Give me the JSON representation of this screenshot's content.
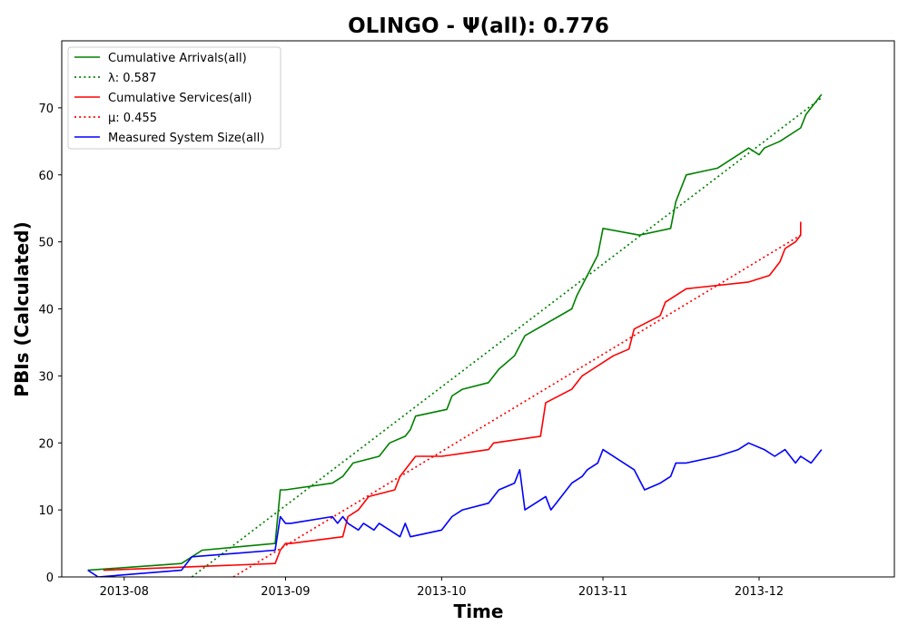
{
  "chart_data": {
    "type": "line",
    "title": "OLINGO -  Ψ(all): 0.776",
    "xlabel": "Time",
    "ylabel": "PBIs (Calculated)",
    "xlim": [
      "2013-07-20",
      "2013-12-27"
    ],
    "ylim": [
      0,
      80
    ],
    "x_ticks": [
      "2013-08",
      "2013-09",
      "2013-10",
      "2013-11",
      "2013-12"
    ],
    "y_ticks": [
      0,
      10,
      20,
      30,
      40,
      50,
      60,
      70
    ],
    "grid": false,
    "legend_position": "top-left",
    "series": [
      {
        "name": "Cumulative Arrivals(all)",
        "color": "#008000",
        "style": "solid",
        "x": [
          "2013-07-25",
          "2013-08-12",
          "2013-08-14",
          "2013-08-16",
          "2013-08-30",
          "2013-08-31",
          "2013-09-01",
          "2013-09-10",
          "2013-09-12",
          "2013-09-14",
          "2013-09-19",
          "2013-09-21",
          "2013-09-24",
          "2013-09-25",
          "2013-09-26",
          "2013-10-02",
          "2013-10-03",
          "2013-10-05",
          "2013-10-10",
          "2013-10-12",
          "2013-10-15",
          "2013-10-17",
          "2013-10-26",
          "2013-10-27",
          "2013-10-31",
          "2013-11-01",
          "2013-11-08",
          "2013-11-14",
          "2013-11-15",
          "2013-11-17",
          "2013-11-23",
          "2013-11-27",
          "2013-11-29",
          "2013-12-01",
          "2013-12-02",
          "2013-12-05",
          "2013-12-09",
          "2013-12-10",
          "2013-12-13"
        ],
        "y": [
          1,
          2,
          3,
          4,
          5,
          13,
          13,
          14,
          15,
          17,
          18,
          20,
          21,
          22,
          24,
          25,
          27,
          28,
          29,
          31,
          33,
          36,
          40,
          42,
          48,
          52,
          51,
          52,
          56,
          60,
          61,
          63,
          64,
          63,
          64,
          65,
          67,
          69,
          72
        ]
      },
      {
        "name": "λ: 0.587",
        "color": "#008000",
        "style": "dotted",
        "x": [
          "2013-08-14",
          "2013-12-13"
        ],
        "y": [
          0,
          71.5
        ]
      },
      {
        "name": "Cumulative Services(all)",
        "color": "#ff0000",
        "style": "solid",
        "x": [
          "2013-07-28",
          "2013-08-30",
          "2013-08-31",
          "2013-09-01",
          "2013-09-02",
          "2013-09-12",
          "2013-09-13",
          "2013-09-15",
          "2013-09-17",
          "2013-09-22",
          "2013-09-23",
          "2013-09-26",
          "2013-10-01",
          "2013-10-10",
          "2013-10-11",
          "2013-10-20",
          "2013-10-21",
          "2013-10-26",
          "2013-10-28",
          "2013-10-30",
          "2013-11-01",
          "2013-11-03",
          "2013-11-06",
          "2013-11-07",
          "2013-11-12",
          "2013-11-13",
          "2013-11-17",
          "2013-11-29",
          "2013-12-03",
          "2013-12-05",
          "2013-12-06",
          "2013-12-08",
          "2013-12-09",
          "2013-12-09"
        ],
        "y": [
          1,
          2,
          4,
          5,
          5,
          6,
          9,
          10,
          12,
          13,
          15,
          18,
          18,
          19,
          20,
          21,
          26,
          28,
          30,
          31,
          32,
          33,
          34,
          37,
          39,
          41,
          43,
          44,
          45,
          47,
          49,
          50,
          51,
          53
        ]
      },
      {
        "name": "μ: 0.455",
        "color": "#ff0000",
        "style": "dotted",
        "x": [
          "2013-08-22",
          "2013-12-09"
        ],
        "y": [
          0,
          51
        ]
      },
      {
        "name": "Measured System Size(all)",
        "color": "#0000ff",
        "style": "solid",
        "x": [
          "2013-07-25",
          "2013-07-27",
          "2013-08-12",
          "2013-08-14",
          "2013-08-30",
          "2013-08-31",
          "2013-09-01",
          "2013-09-02",
          "2013-09-10",
          "2013-09-11",
          "2013-09-12",
          "2013-09-13",
          "2013-09-15",
          "2013-09-16",
          "2013-09-18",
          "2013-09-19",
          "2013-09-21",
          "2013-09-23",
          "2013-09-24",
          "2013-09-25",
          "2013-10-01",
          "2013-10-03",
          "2013-10-05",
          "2013-10-10",
          "2013-10-12",
          "2013-10-15",
          "2013-10-16",
          "2013-10-17",
          "2013-10-21",
          "2013-10-22",
          "2013-10-23",
          "2013-10-26",
          "2013-10-28",
          "2013-10-29",
          "2013-10-31",
          "2013-11-01",
          "2013-11-07",
          "2013-11-09",
          "2013-11-12",
          "2013-11-14",
          "2013-11-15",
          "2013-11-17",
          "2013-11-23",
          "2013-11-27",
          "2013-11-29",
          "2013-12-02",
          "2013-12-04",
          "2013-12-06",
          "2013-12-08",
          "2013-12-09",
          "2013-12-11",
          "2013-12-13"
        ],
        "y": [
          1,
          0,
          1,
          3,
          4,
          9,
          8,
          8,
          9,
          8,
          9,
          8,
          7,
          8,
          7,
          8,
          7,
          6,
          8,
          6,
          7,
          9,
          10,
          11,
          13,
          14,
          16,
          10,
          12,
          10,
          11,
          14,
          15,
          16,
          17,
          19,
          16,
          13,
          14,
          15,
          17,
          17,
          18,
          19,
          20,
          19,
          18,
          19,
          17,
          18,
          17,
          19
        ]
      }
    ]
  }
}
